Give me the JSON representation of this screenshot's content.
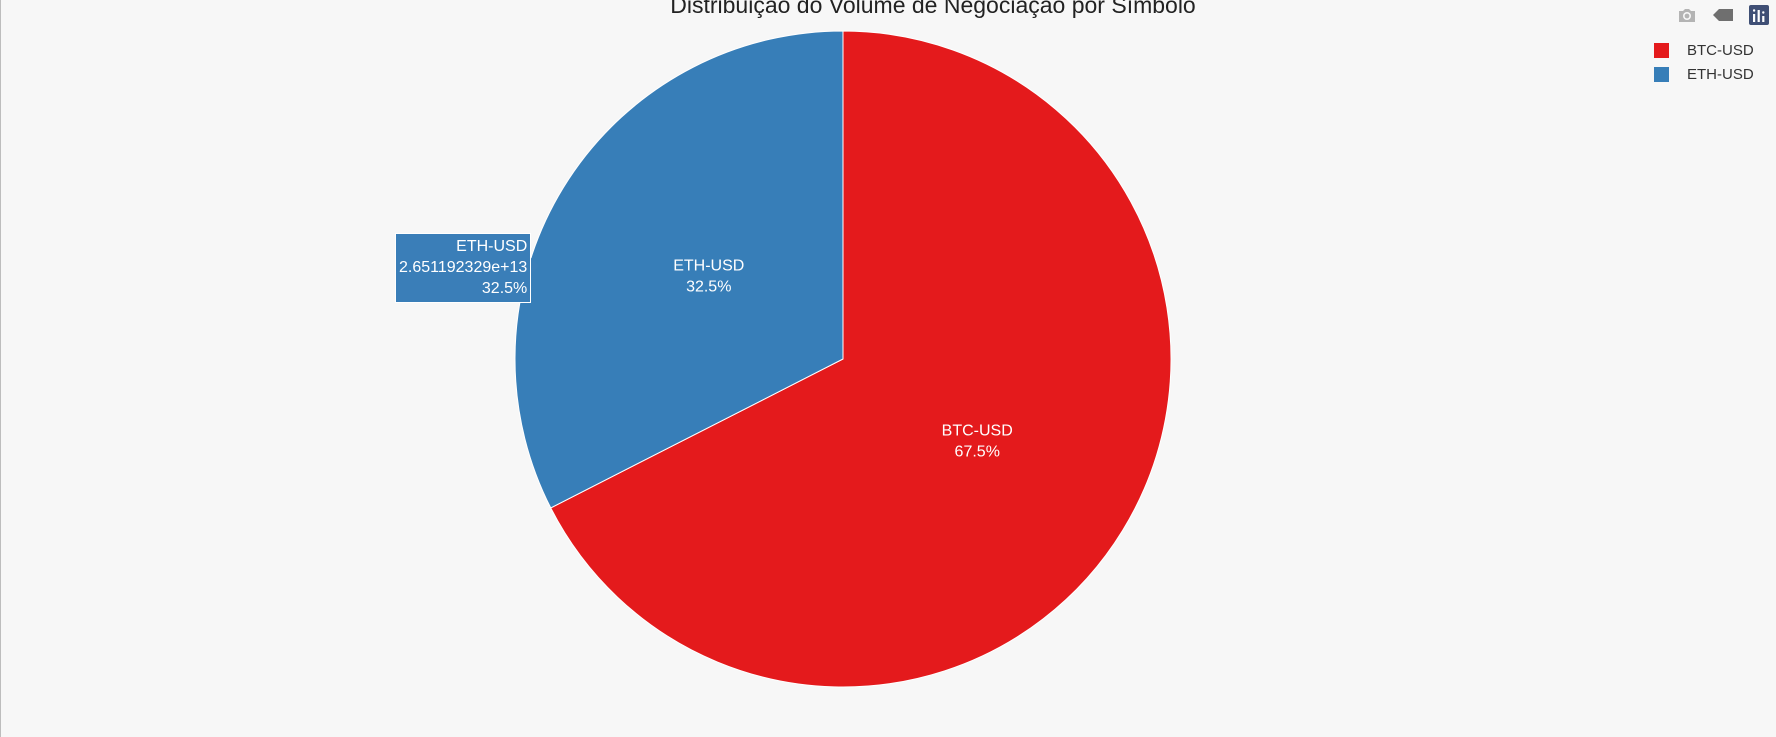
{
  "chart_data": {
    "type": "pie",
    "title": "Distribuição do Volume de Negociação por Símbolo",
    "slices": [
      {
        "label": "BTC-USD",
        "percent": 67.5,
        "percent_text": "67.5%",
        "color": "#e41a1c"
      },
      {
        "label": "ETH-USD",
        "percent": 32.5,
        "percent_text": "32.5%",
        "color": "#377eb8"
      }
    ],
    "legend": {
      "position": "top-right"
    },
    "hover": {
      "label": "ETH-USD",
      "value_text": "2.651192329e+13",
      "percent_text": "32.5%"
    }
  },
  "modebar": {
    "icons": [
      "camera-icon",
      "tag-icon",
      "plotly-logo-icon"
    ]
  }
}
